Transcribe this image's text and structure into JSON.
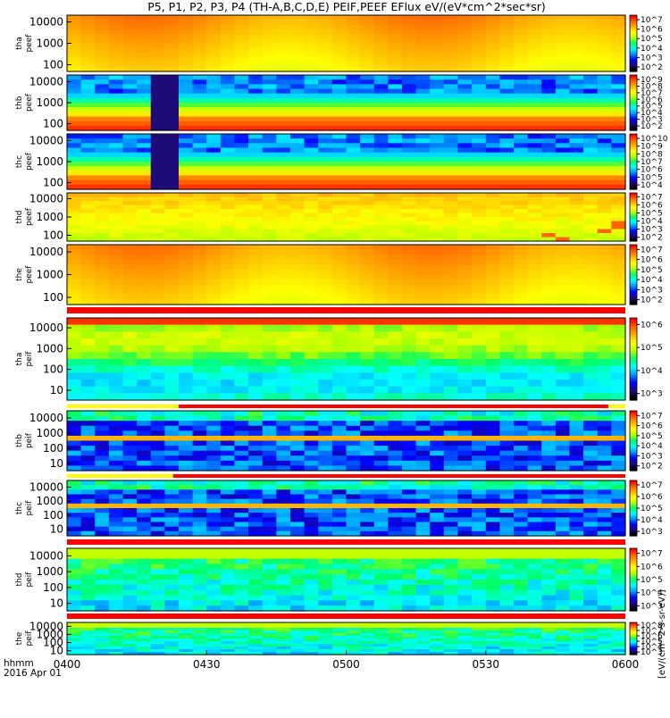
{
  "chart_data": {
    "type": "heatmap",
    "title": "P5, P1, P2, P3, P4 (TH-A,B,C,D,E) PEIF,PEEF EFlux eV/(eV*cm^2*sec*sr)",
    "time_axis": {
      "label_line1": "hhmm",
      "label_line2": "2016 Apr 01",
      "ticks": [
        "0400",
        "0430",
        "0500",
        "0530",
        "0600"
      ],
      "range": [
        "04:00",
        "06:00"
      ]
    },
    "colorbar_label": "[eV/(cm^2-s-sr-eV)]",
    "colormap": [
      "#000000",
      "#1e0a78",
      "#0000ff",
      "#0096ff",
      "#00ffff",
      "#00ff64",
      "#b4ff00",
      "#ffff00",
      "#ffb400",
      "#ff6400",
      "#ff0000"
    ],
    "panels": [
      {
        "probe": "tha",
        "species": "peef",
        "ylabel_top": "tha",
        "ylabel_bottom": "peef",
        "yticks": [
          "10000",
          "1000",
          "100"
        ],
        "cb_ticks": [
          "10^7",
          "10^6",
          "10^5",
          "10^4",
          "10^3",
          "10^2"
        ],
        "pattern": "electron_high_flux"
      },
      {
        "probe": "thb",
        "species": "peef",
        "ylabel_top": "thb",
        "ylabel_bottom": "peef",
        "yticks": [
          "10000",
          "1000",
          "100"
        ],
        "cb_ticks": [
          "10^9",
          "10^8",
          "10^7",
          "10^6",
          "10^5",
          "10^4",
          "10^3",
          "10^2"
        ],
        "pattern": "electron_layered",
        "gap": [
          0.15,
          0.19
        ]
      },
      {
        "probe": "thc",
        "species": "peef",
        "ylabel_top": "thc",
        "ylabel_bottom": "peef",
        "yticks": [
          "10000",
          "1000",
          "100"
        ],
        "cb_ticks": [
          "10^10",
          "10^9",
          "10^8",
          "10^7",
          "10^6",
          "10^5",
          "10^4"
        ],
        "pattern": "electron_layered",
        "gap": [
          0.15,
          0.19
        ]
      },
      {
        "probe": "thd",
        "species": "peef",
        "ylabel_top": "thd",
        "ylabel_bottom": "peef",
        "yticks": [
          "10000",
          "1000",
          "100"
        ],
        "cb_ticks": [
          "10^7",
          "10^6",
          "10^5",
          "10^4",
          "10^3",
          "10^2"
        ],
        "pattern": "electron_medium"
      },
      {
        "probe": "the",
        "species": "peef",
        "ylabel_top": "the",
        "ylabel_bottom": "peef",
        "yticks": [
          "10000",
          "1000",
          "100"
        ],
        "cb_ticks": [
          "10^7",
          "10^6",
          "10^5",
          "10^4",
          "10^3",
          "10^2"
        ],
        "pattern": "electron_high_flux"
      },
      {
        "probe": "tha",
        "species": "peif",
        "ylabel_top": "tha",
        "ylabel_bottom": "peif",
        "yticks": [
          "10000",
          "1000",
          "100",
          "10"
        ],
        "cb_ticks": [
          "10^6",
          "10^5",
          "10^4",
          "10^3"
        ],
        "pattern": "ion_green"
      },
      {
        "probe": "thb",
        "species": "peif",
        "ylabel_top": "thb",
        "ylabel_bottom": "peif",
        "yticks": [
          "10000",
          "1000",
          "100",
          "10"
        ],
        "cb_ticks": [
          "10^7",
          "10^6",
          "10^5",
          "10^4",
          "10^3",
          "10^2"
        ],
        "pattern": "ion_dark_band"
      },
      {
        "probe": "thc",
        "species": "peif",
        "ylabel_top": "thc",
        "ylabel_bottom": "peif",
        "yticks": [
          "10000",
          "1000",
          "100",
          "10"
        ],
        "cb_ticks": [
          "10^7",
          "10^6",
          "10^5",
          "10^4",
          "10^3"
        ],
        "pattern": "ion_dark_band"
      },
      {
        "probe": "thd",
        "species": "peif",
        "ylabel_top": "thd",
        "ylabel_bottom": "peif",
        "yticks": [
          "10000",
          "1000",
          "100",
          "10"
        ],
        "cb_ticks": [
          "10^7",
          "10^6",
          "10^5",
          "10^4",
          "10^3"
        ],
        "pattern": "ion_blue"
      },
      {
        "probe": "the",
        "species": "peif",
        "ylabel_top": "the",
        "ylabel_bottom": "peif",
        "yticks": [
          "10000",
          "1000",
          "100",
          "10"
        ],
        "cb_ticks": [
          "10^8",
          "10^7",
          "10^6",
          "10^5",
          "10^4",
          "10^3"
        ],
        "pattern": "ion_blue"
      }
    ],
    "separator_strips": [
      {
        "after_panel": 4,
        "segments": [
          {
            "from": 0.0,
            "to": 1.0,
            "color": "#ff0000"
          }
        ]
      },
      {
        "after_panel": 5,
        "segments": [
          {
            "from": 0.0,
            "to": 0.2,
            "color": "#ffff00"
          },
          {
            "from": 0.2,
            "to": 0.97,
            "color": "#ff0000"
          },
          {
            "from": 0.97,
            "to": 1.0,
            "color": "#ffff00"
          }
        ]
      },
      {
        "after_panel": 6,
        "segments": [
          {
            "from": 0.0,
            "to": 0.19,
            "color": "#ffff00"
          },
          {
            "from": 0.19,
            "to": 1.0,
            "color": "#ff0000"
          }
        ]
      },
      {
        "after_panel": 7,
        "segments": [
          {
            "from": 0.0,
            "to": 1.0,
            "color": "#ff0000"
          }
        ]
      },
      {
        "after_panel": 8,
        "segments": [
          {
            "from": 0.0,
            "to": 1.0,
            "color": "#ff0000"
          }
        ]
      }
    ]
  }
}
